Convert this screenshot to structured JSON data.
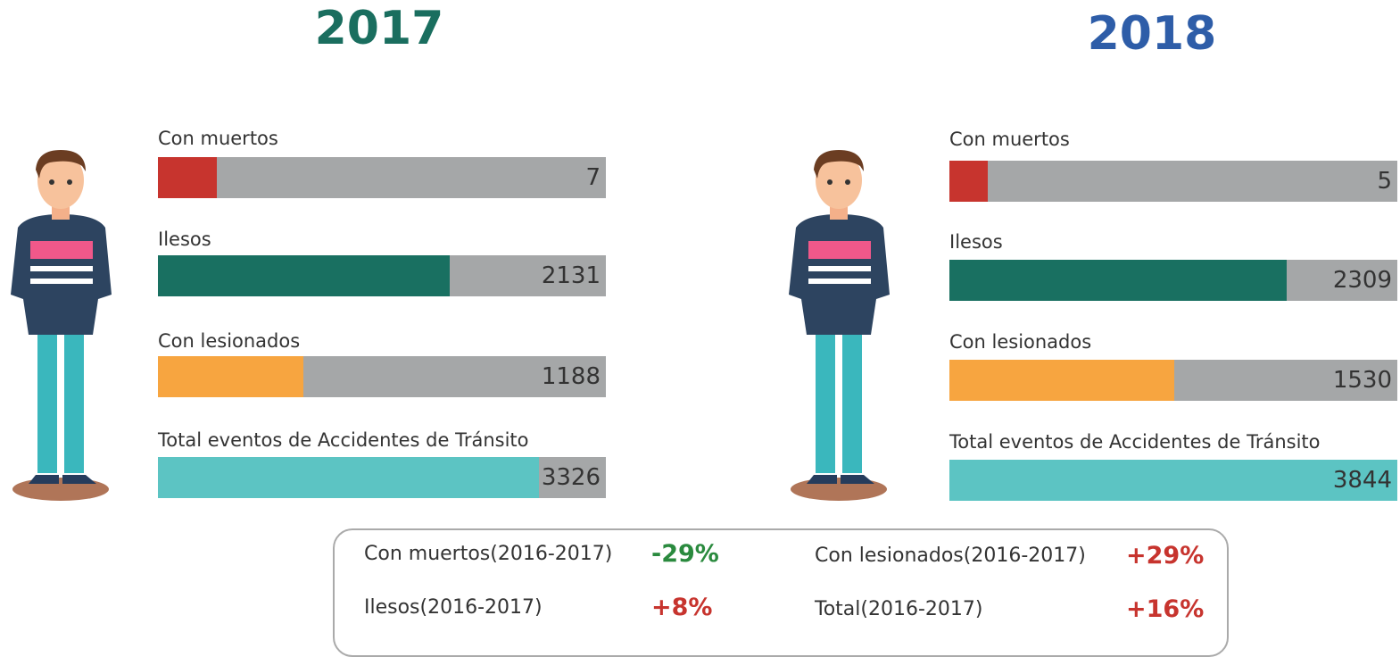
{
  "panels": [
    {
      "year": "2017",
      "rows": [
        {
          "label": "Con muertos",
          "value": 7
        },
        {
          "label": "Ilesos",
          "value": 2131
        },
        {
          "label": "Con lesionados",
          "value": 1188
        },
        {
          "label": "Total eventos de Accidentes de Tránsito",
          "value": 3326
        }
      ]
    },
    {
      "year": "2018",
      "rows": [
        {
          "label": "Con muertos",
          "value": 5
        },
        {
          "label": "Ilesos",
          "value": 2309
        },
        {
          "label": "Con lesionados",
          "value": 1530
        },
        {
          "label": "Total eventos de Accidentes de Tránsito",
          "value": 3844
        }
      ]
    }
  ],
  "summary": [
    {
      "label": "Con muertos(2016-2017)",
      "change": "-29%"
    },
    {
      "label": "Ilesos(2016-2017)",
      "change": "+8%"
    },
    {
      "label": "Con lesionados(2016-2017)",
      "change": "+29%"
    },
    {
      "label": "Total(2016-2017)",
      "change": "+16%"
    }
  ]
}
